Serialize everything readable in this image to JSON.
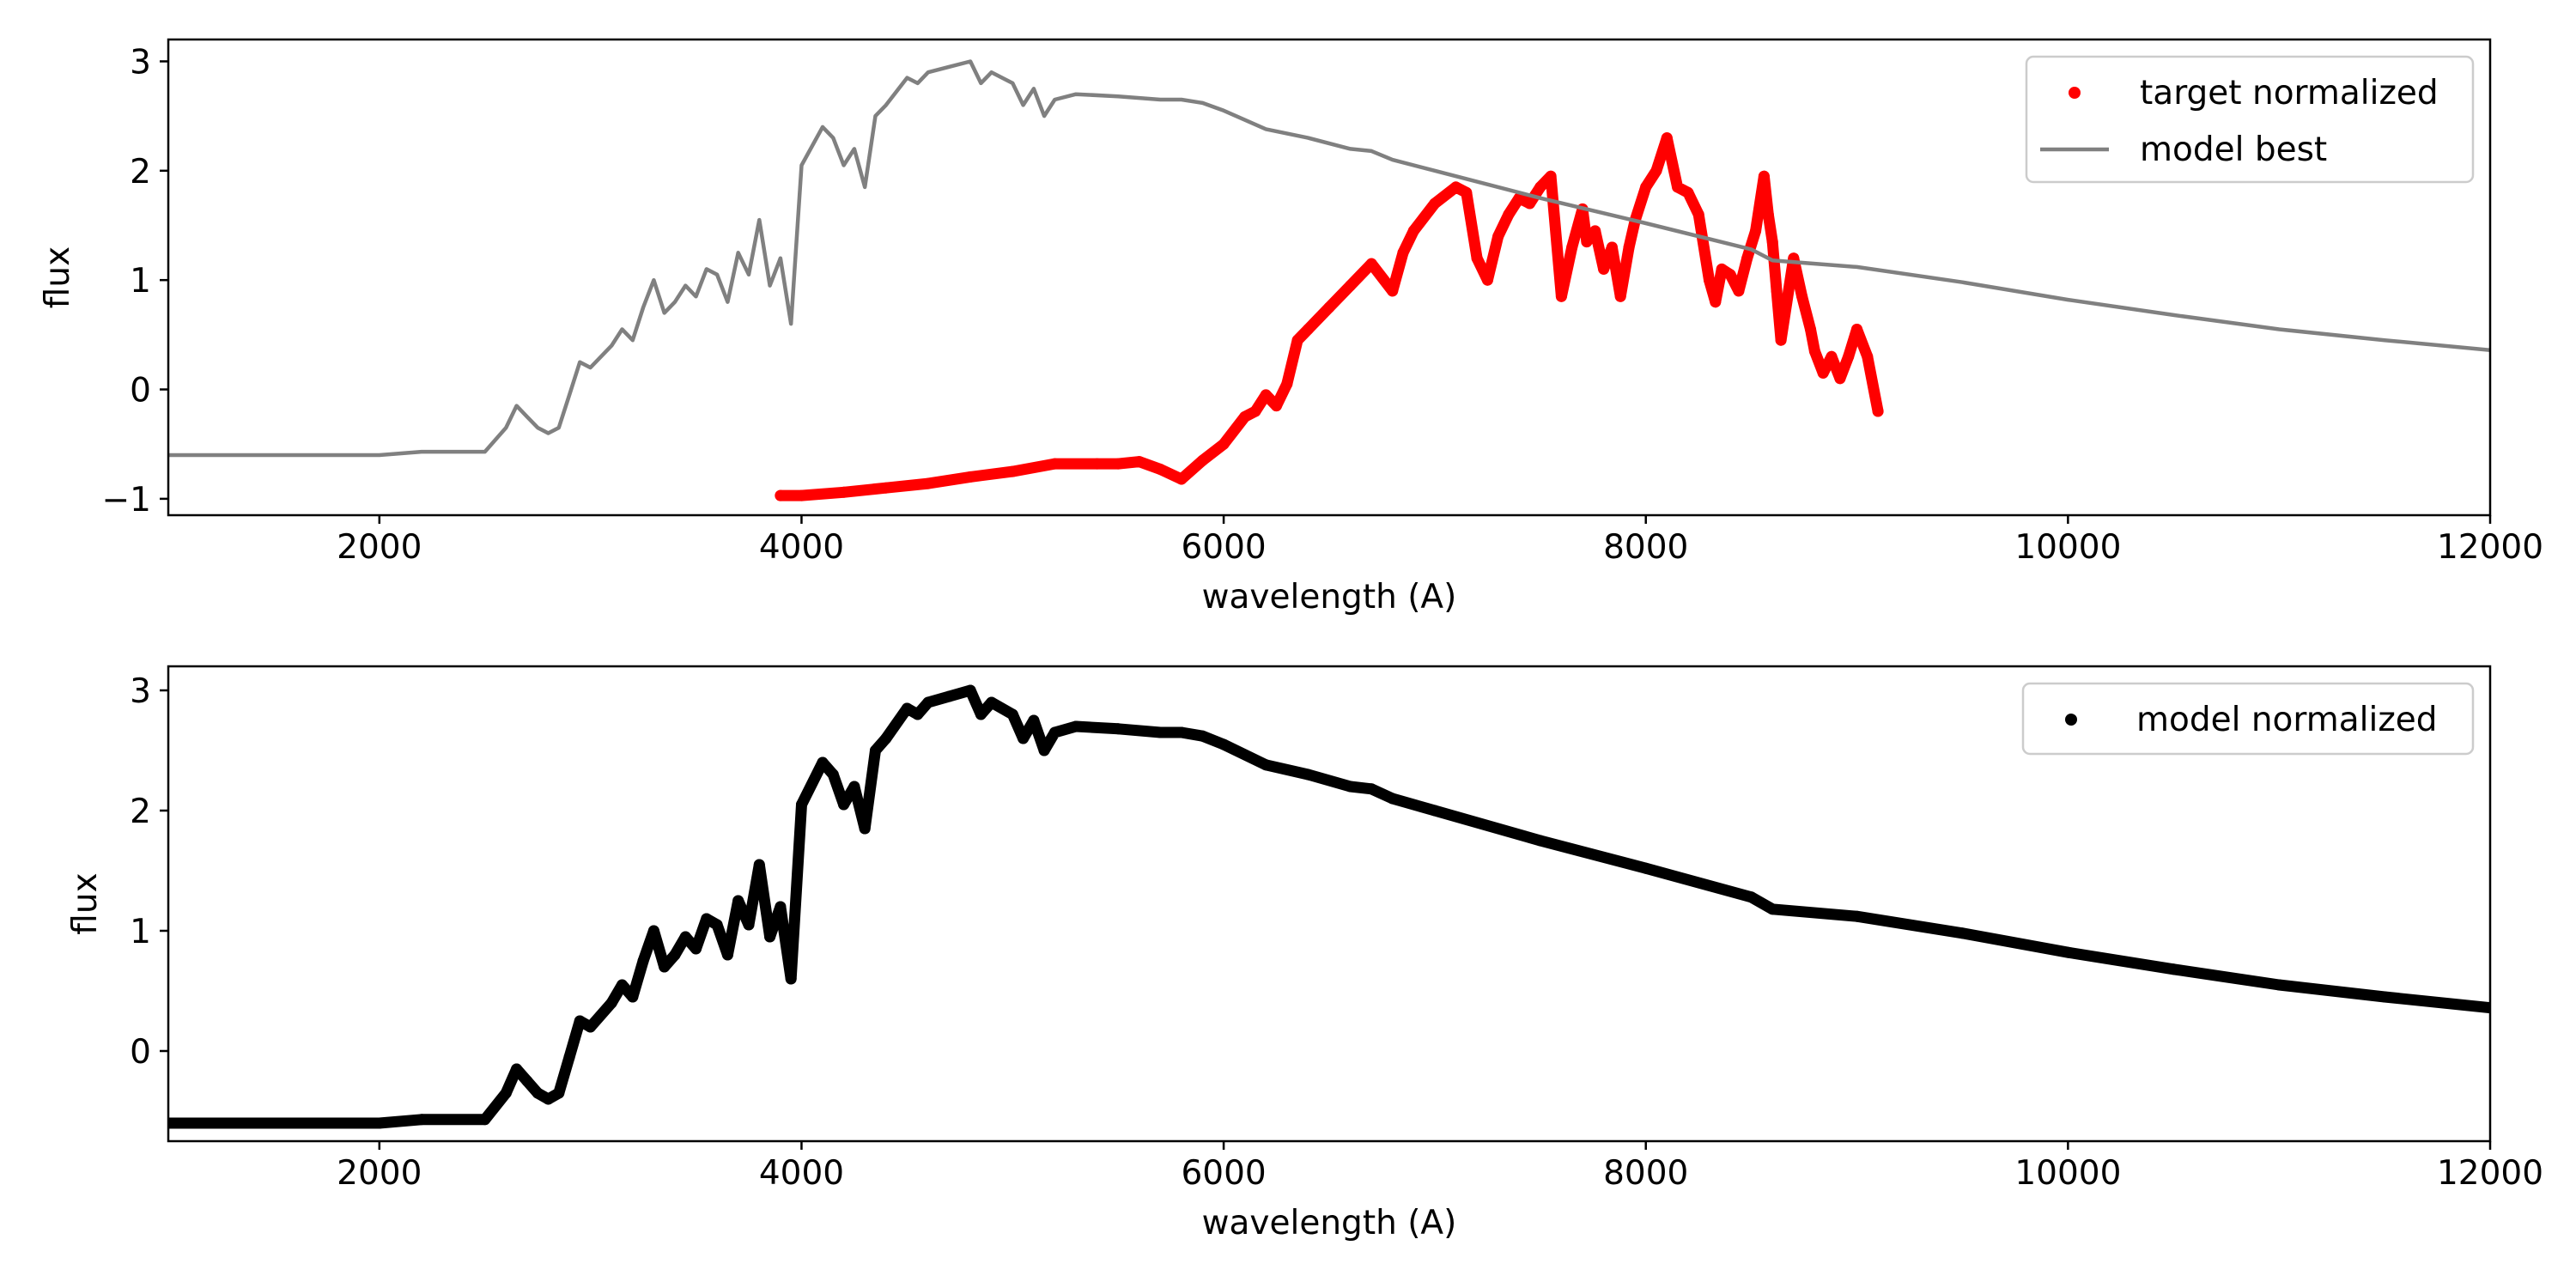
{
  "chart_data": [
    {
      "type": "line",
      "title": "",
      "xlabel": "wavelength (A)",
      "ylabel": "flux",
      "xlim": [
        1000,
        12000
      ],
      "ylim": [
        -1.15,
        3.2
      ],
      "xticks": [
        2000,
        4000,
        6000,
        8000,
        10000,
        12000
      ],
      "xtick_labels": [
        "2000",
        "4000",
        "6000",
        "8000",
        "10000",
        "12000"
      ],
      "yticks": [
        -1,
        0,
        1,
        2,
        3
      ],
      "ytick_labels": [
        "−1",
        "0",
        "1",
        "2",
        "3"
      ],
      "legend_position": "top-right",
      "grid": false,
      "series": [
        {
          "name": "target normalized",
          "style": "markers",
          "color": "#ff0000",
          "x": [
            3900,
            4000,
            4200,
            4400,
            4600,
            4800,
            5000,
            5200,
            5400,
            5500,
            5600,
            5700,
            5800,
            5900,
            6000,
            6100,
            6150,
            6200,
            6250,
            6300,
            6350,
            6400,
            6500,
            6600,
            6700,
            6800,
            6850,
            6900,
            7000,
            7100,
            7150,
            7200,
            7250,
            7300,
            7350,
            7400,
            7450,
            7500,
            7550,
            7600,
            7650,
            7700,
            7720,
            7760,
            7800,
            7840,
            7880,
            7920,
            7950,
            8000,
            8050,
            8100,
            8150,
            8200,
            8250,
            8300,
            8330,
            8360,
            8400,
            8440,
            8480,
            8520,
            8560,
            8580,
            8600,
            8620,
            8640,
            8700,
            8740,
            8780,
            8800,
            8840,
            8880,
            8920,
            8960,
            9000,
            9050,
            9100
          ],
          "y": [
            -0.97,
            -0.97,
            -0.94,
            -0.9,
            -0.86,
            -0.8,
            -0.75,
            -0.68,
            -0.68,
            -0.68,
            -0.66,
            -0.73,
            -0.82,
            -0.65,
            -0.5,
            -0.25,
            -0.2,
            -0.05,
            -0.15,
            0.05,
            0.45,
            0.55,
            0.75,
            0.95,
            1.15,
            0.9,
            1.25,
            1.45,
            1.7,
            1.85,
            1.8,
            1.2,
            1.0,
            1.4,
            1.6,
            1.75,
            1.7,
            1.85,
            1.95,
            0.85,
            1.3,
            1.65,
            1.35,
            1.45,
            1.1,
            1.3,
            0.85,
            1.3,
            1.55,
            1.85,
            2.0,
            2.3,
            1.85,
            1.8,
            1.6,
            1.0,
            0.8,
            1.1,
            1.05,
            0.9,
            1.2,
            1.45,
            1.95,
            1.6,
            1.35,
            0.9,
            0.45,
            1.2,
            0.85,
            0.55,
            0.35,
            0.15,
            0.3,
            0.1,
            0.3,
            0.55,
            0.3,
            -0.2
          ]
        },
        {
          "name": "model best",
          "style": "line",
          "color": "#808080",
          "x": [
            1000,
            2000,
            2200,
            2500,
            2600,
            2650,
            2700,
            2750,
            2800,
            2850,
            2900,
            2950,
            3000,
            3100,
            3150,
            3200,
            3250,
            3300,
            3350,
            3400,
            3450,
            3500,
            3550,
            3600,
            3650,
            3700,
            3750,
            3800,
            3850,
            3900,
            3950,
            4000,
            4100,
            4150,
            4200,
            4250,
            4300,
            4350,
            4400,
            4500,
            4550,
            4600,
            4700,
            4800,
            4850,
            4900,
            5000,
            5050,
            5100,
            5150,
            5200,
            5300,
            5500,
            5700,
            5800,
            5900,
            6000,
            6200,
            6400,
            6600,
            6700,
            6800,
            7000,
            7500,
            8000,
            8500,
            8600,
            9000,
            9500,
            10000,
            10500,
            11000,
            11500,
            12000
          ],
          "y": [
            -0.6,
            -0.6,
            -0.57,
            -0.57,
            -0.35,
            -0.15,
            -0.25,
            -0.35,
            -0.4,
            -0.35,
            -0.05,
            0.25,
            0.2,
            0.4,
            0.55,
            0.45,
            0.75,
            1.0,
            0.7,
            0.8,
            0.95,
            0.85,
            1.1,
            1.05,
            0.8,
            1.25,
            1.05,
            1.55,
            0.95,
            1.2,
            0.6,
            2.05,
            2.4,
            2.3,
            2.05,
            2.2,
            1.85,
            2.5,
            2.6,
            2.85,
            2.8,
            2.9,
            2.95,
            3.0,
            2.8,
            2.9,
            2.8,
            2.6,
            2.75,
            2.5,
            2.65,
            2.7,
            2.68,
            2.65,
            2.65,
            2.62,
            2.55,
            2.38,
            2.3,
            2.2,
            2.18,
            2.1,
            2.0,
            1.75,
            1.52,
            1.28,
            1.18,
            1.12,
            0.98,
            0.82,
            0.68,
            0.55,
            0.45,
            0.36
          ]
        }
      ]
    },
    {
      "type": "line",
      "title": "",
      "xlabel": "wavelength (A)",
      "ylabel": "flux",
      "xlim": [
        1000,
        12000
      ],
      "ylim": [
        -0.75,
        3.2
      ],
      "xticks": [
        2000,
        4000,
        6000,
        8000,
        10000,
        12000
      ],
      "xtick_labels": [
        "2000",
        "4000",
        "6000",
        "8000",
        "10000",
        "12000"
      ],
      "yticks": [
        0,
        1,
        2,
        3
      ],
      "ytick_labels": [
        "0",
        "1",
        "2",
        "3"
      ],
      "legend_position": "top-right",
      "grid": false,
      "series": [
        {
          "name": "model normalized",
          "style": "markers",
          "color": "#000000",
          "x": [
            1000,
            2000,
            2200,
            2500,
            2600,
            2650,
            2700,
            2750,
            2800,
            2850,
            2900,
            2950,
            3000,
            3100,
            3150,
            3200,
            3250,
            3300,
            3350,
            3400,
            3450,
            3500,
            3550,
            3600,
            3650,
            3700,
            3750,
            3800,
            3850,
            3900,
            3950,
            4000,
            4100,
            4150,
            4200,
            4250,
            4300,
            4350,
            4400,
            4500,
            4550,
            4600,
            4700,
            4800,
            4850,
            4900,
            5000,
            5050,
            5100,
            5150,
            5200,
            5300,
            5500,
            5700,
            5800,
            5900,
            6000,
            6200,
            6400,
            6600,
            6700,
            6800,
            7000,
            7500,
            8000,
            8500,
            8600,
            9000,
            9500,
            10000,
            10500,
            11000,
            11500,
            12000
          ],
          "y": [
            -0.6,
            -0.6,
            -0.57,
            -0.57,
            -0.35,
            -0.15,
            -0.25,
            -0.35,
            -0.4,
            -0.35,
            -0.05,
            0.25,
            0.2,
            0.4,
            0.55,
            0.45,
            0.75,
            1.0,
            0.7,
            0.8,
            0.95,
            0.85,
            1.1,
            1.05,
            0.8,
            1.25,
            1.05,
            1.55,
            0.95,
            1.2,
            0.6,
            2.05,
            2.4,
            2.3,
            2.05,
            2.2,
            1.85,
            2.5,
            2.6,
            2.85,
            2.8,
            2.9,
            2.95,
            3.0,
            2.8,
            2.9,
            2.8,
            2.6,
            2.75,
            2.5,
            2.65,
            2.7,
            2.68,
            2.65,
            2.65,
            2.62,
            2.55,
            2.38,
            2.3,
            2.2,
            2.18,
            2.1,
            2.0,
            1.75,
            1.52,
            1.28,
            1.18,
            1.12,
            0.98,
            0.82,
            0.68,
            0.55,
            0.45,
            0.36
          ]
        }
      ]
    }
  ]
}
